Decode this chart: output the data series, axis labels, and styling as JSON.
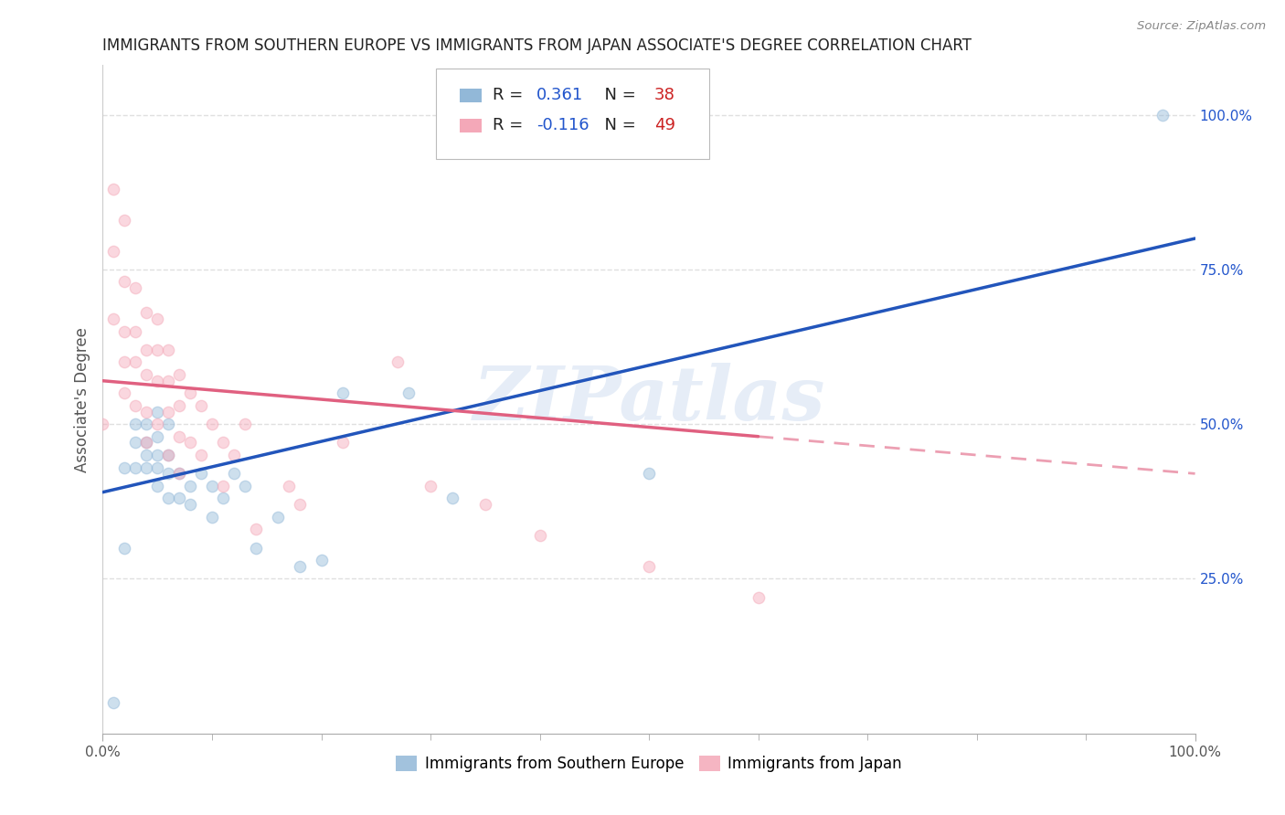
{
  "title": "IMMIGRANTS FROM SOUTHERN EUROPE VS IMMIGRANTS FROM JAPAN ASSOCIATE'S DEGREE CORRELATION CHART",
  "source": "Source: ZipAtlas.com",
  "ylabel": "Associate's Degree",
  "watermark": "ZIPatlas",
  "series1_label": "Immigrants from Southern Europe",
  "series1_color": "#92b8d8",
  "series1_R": 0.361,
  "series1_N": 38,
  "series2_label": "Immigrants from Japan",
  "series2_color": "#f4a8b8",
  "series2_R": -0.116,
  "series2_N": 49,
  "ytick_labels": [
    "25.0%",
    "50.0%",
    "75.0%",
    "100.0%"
  ],
  "ytick_values": [
    0.25,
    0.5,
    0.75,
    1.0
  ],
  "xlim": [
    0.0,
    1.0
  ],
  "ylim": [
    0.0,
    1.08
  ],
  "background_color": "#ffffff",
  "grid_color": "#e0e0e0",
  "series1_x": [
    0.01,
    0.02,
    0.02,
    0.03,
    0.03,
    0.03,
    0.04,
    0.04,
    0.04,
    0.04,
    0.05,
    0.05,
    0.05,
    0.05,
    0.05,
    0.06,
    0.06,
    0.06,
    0.06,
    0.07,
    0.07,
    0.08,
    0.08,
    0.09,
    0.1,
    0.1,
    0.11,
    0.12,
    0.13,
    0.14,
    0.16,
    0.18,
    0.2,
    0.22,
    0.28,
    0.32,
    0.5,
    0.97
  ],
  "series1_y": [
    0.05,
    0.3,
    0.43,
    0.43,
    0.47,
    0.5,
    0.43,
    0.45,
    0.47,
    0.5,
    0.4,
    0.43,
    0.45,
    0.48,
    0.52,
    0.38,
    0.42,
    0.45,
    0.5,
    0.38,
    0.42,
    0.37,
    0.4,
    0.42,
    0.35,
    0.4,
    0.38,
    0.42,
    0.4,
    0.3,
    0.35,
    0.27,
    0.28,
    0.55,
    0.55,
    0.38,
    0.42,
    1.0
  ],
  "series2_x": [
    0.0,
    0.01,
    0.01,
    0.01,
    0.02,
    0.02,
    0.02,
    0.02,
    0.02,
    0.03,
    0.03,
    0.03,
    0.03,
    0.04,
    0.04,
    0.04,
    0.04,
    0.04,
    0.05,
    0.05,
    0.05,
    0.05,
    0.06,
    0.06,
    0.06,
    0.06,
    0.07,
    0.07,
    0.07,
    0.07,
    0.08,
    0.08,
    0.09,
    0.09,
    0.1,
    0.11,
    0.11,
    0.12,
    0.13,
    0.14,
    0.17,
    0.18,
    0.22,
    0.27,
    0.3,
    0.35,
    0.4,
    0.5,
    0.6
  ],
  "series2_y": [
    0.5,
    0.88,
    0.78,
    0.67,
    0.83,
    0.73,
    0.65,
    0.6,
    0.55,
    0.72,
    0.65,
    0.6,
    0.53,
    0.68,
    0.62,
    0.58,
    0.52,
    0.47,
    0.67,
    0.62,
    0.57,
    0.5,
    0.62,
    0.57,
    0.52,
    0.45,
    0.58,
    0.53,
    0.48,
    0.42,
    0.55,
    0.47,
    0.53,
    0.45,
    0.5,
    0.47,
    0.4,
    0.45,
    0.5,
    0.33,
    0.4,
    0.37,
    0.47,
    0.6,
    0.4,
    0.37,
    0.32,
    0.27,
    0.22
  ],
  "trend1_color": "#2255bb",
  "trend2_color": "#e06080",
  "trend2_solid_end": 0.6,
  "R_color": "#2255cc",
  "N_color": "#cc2222",
  "title_fontsize": 12,
  "axis_label_fontsize": 12,
  "tick_fontsize": 11,
  "scatter_size": 80,
  "scatter_alpha": 0.45,
  "scatter_lw": 1.0
}
